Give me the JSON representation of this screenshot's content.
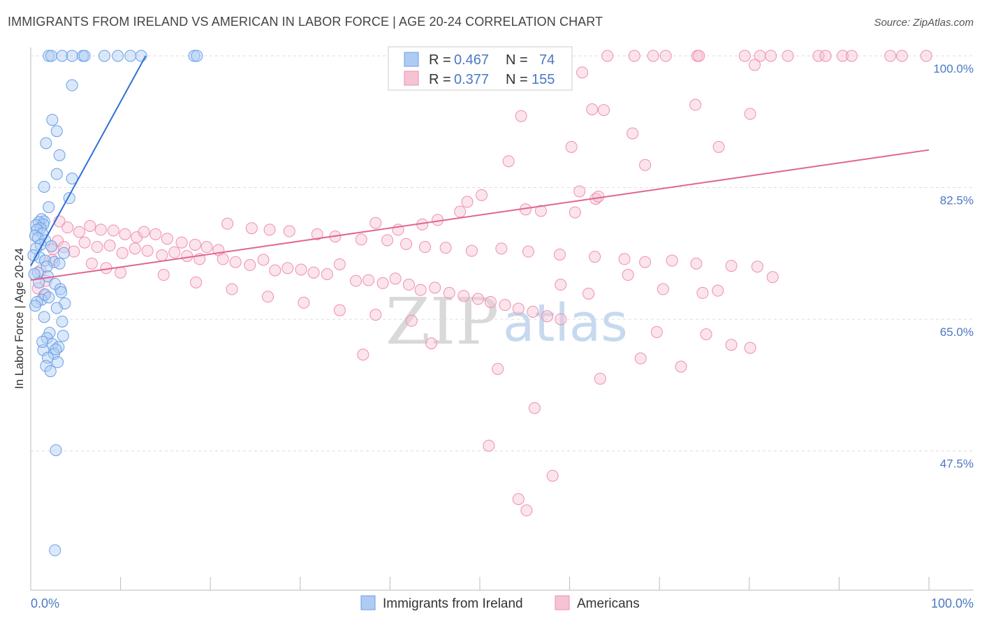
{
  "title": "IMMIGRANTS FROM IRELAND VS AMERICAN IN LABOR FORCE | AGE 20-24 CORRELATION CHART",
  "source": "Source: ZipAtlas.com",
  "watermark": {
    "zip": "ZIP",
    "atlas": "atlas"
  },
  "colors": {
    "ireland": "#6a9fe6",
    "ireland_fill": "#aecbf3",
    "ireland_line": "#2f6fd6",
    "americans": "#ee8fb0",
    "americans_fill": "#f6c3d4",
    "americans_line": "#e0668f",
    "tick_blue": "#4a78c2"
  },
  "stats": [
    {
      "r_label": "R =",
      "r_value": "0.467",
      "n_label": "N =",
      "n_value": "74"
    },
    {
      "r_label": "R =",
      "r_value": "0.377",
      "n_label": "N =",
      "n_value": "155"
    }
  ],
  "chart_data": {
    "type": "scatter",
    "title": "IMMIGRANTS FROM IRELAND VS AMERICAN IN LABOR FORCE | AGE 20-24 CORRELATION CHART",
    "xlabel": "",
    "ylabel": "In Labor Force | Age 20-24",
    "xlim": [
      0,
      100
    ],
    "ylim": [
      29,
      100
    ],
    "x_tick_labels": [
      "0.0%",
      "100.0%"
    ],
    "y_ticks": [
      47.5,
      65.0,
      82.5,
      100.0
    ],
    "y_tick_labels": [
      "47.5%",
      "65.0%",
      "82.5%",
      "100.0%"
    ],
    "grid": "horizontal dashed",
    "legend_position": "bottom-center",
    "series": [
      {
        "name": "Immigrants from Ireland",
        "r": 0.467,
        "n": 74,
        "trend": {
          "x": [
            0.0,
            12.8
          ],
          "y": [
            72.1,
            100.0
          ]
        },
        "points": [
          [
            2.0,
            100
          ],
          [
            2.3,
            100
          ],
          [
            3.5,
            100
          ],
          [
            4.6,
            100
          ],
          [
            5.8,
            100
          ],
          [
            6.0,
            100
          ],
          [
            8.2,
            100
          ],
          [
            9.7,
            100
          ],
          [
            11.1,
            100
          ],
          [
            12.3,
            100
          ],
          [
            18.2,
            100
          ],
          [
            18.5,
            100
          ],
          [
            4.6,
            96.1
          ],
          [
            2.4,
            91.5
          ],
          [
            2.9,
            90.0
          ],
          [
            1.7,
            88.4
          ],
          [
            3.2,
            86.8
          ],
          [
            2.9,
            84.3
          ],
          [
            4.6,
            83.7
          ],
          [
            1.5,
            82.6
          ],
          [
            4.3,
            81.1
          ],
          [
            2.0,
            79.9
          ],
          [
            1.2,
            78.3
          ],
          [
            1.5,
            78.0
          ],
          [
            0.9,
            77.9
          ],
          [
            1.4,
            77.6
          ],
          [
            0.6,
            77.5
          ],
          [
            1.1,
            77.1
          ],
          [
            0.7,
            76.9
          ],
          [
            1.3,
            76.4
          ],
          [
            0.5,
            76.1
          ],
          [
            0.8,
            75.8
          ],
          [
            1.6,
            75.5
          ],
          [
            1.1,
            74.9
          ],
          [
            2.3,
            74.7
          ],
          [
            0.6,
            74.4
          ],
          [
            3.7,
            73.8
          ],
          [
            1.0,
            73.2
          ],
          [
            1.6,
            72.8
          ],
          [
            2.6,
            72.6
          ],
          [
            3.2,
            72.4
          ],
          [
            1.8,
            72.0
          ],
          [
            0.8,
            71.2
          ],
          [
            1.9,
            70.7
          ],
          [
            0.9,
            69.9
          ],
          [
            2.7,
            69.7
          ],
          [
            3.3,
            69.0
          ],
          [
            1.6,
            68.3
          ],
          [
            1.2,
            67.6
          ],
          [
            0.7,
            67.3
          ],
          [
            2.0,
            67.9
          ],
          [
            3.8,
            67.1
          ],
          [
            2.9,
            66.5
          ],
          [
            1.5,
            65.3
          ],
          [
            3.5,
            64.7
          ],
          [
            2.1,
            63.2
          ],
          [
            3.6,
            62.8
          ],
          [
            1.8,
            62.5
          ],
          [
            2.4,
            61.7
          ],
          [
            3.1,
            61.3
          ],
          [
            1.4,
            60.9
          ],
          [
            2.6,
            60.4
          ],
          [
            1.9,
            59.9
          ],
          [
            3.0,
            59.3
          ],
          [
            1.7,
            58.8
          ],
          [
            2.2,
            58.1
          ],
          [
            0.5,
            66.8
          ],
          [
            0.4,
            71.0
          ],
          [
            1.3,
            62.0
          ],
          [
            2.8,
            61.0
          ],
          [
            2.8,
            47.6
          ],
          [
            2.7,
            34.3
          ],
          [
            0.3,
            73.5
          ],
          [
            3.4,
            68.6
          ]
        ]
      },
      {
        "name": "Americans",
        "r": 0.377,
        "n": 155,
        "trend": {
          "x": [
            0.0,
            100.0
          ],
          "y": [
            70.2,
            87.5
          ]
        },
        "points": [
          [
            64.2,
            100
          ],
          [
            67.2,
            100
          ],
          [
            69.3,
            100
          ],
          [
            70.7,
            100
          ],
          [
            74.2,
            100
          ],
          [
            74.4,
            100
          ],
          [
            79.5,
            100
          ],
          [
            81.2,
            100
          ],
          [
            82.4,
            100
          ],
          [
            84.3,
            100
          ],
          [
            87.7,
            100
          ],
          [
            88.5,
            100
          ],
          [
            90.4,
            100
          ],
          [
            91.4,
            100
          ],
          [
            95.7,
            100
          ],
          [
            97.0,
            100
          ],
          [
            99.7,
            100
          ],
          [
            80.6,
            98.8
          ],
          [
            61.4,
            97.8
          ],
          [
            74.0,
            93.5
          ],
          [
            62.5,
            92.9
          ],
          [
            63.8,
            92.8
          ],
          [
            80.1,
            92.3
          ],
          [
            54.6,
            92.0
          ],
          [
            67.0,
            89.7
          ],
          [
            60.2,
            87.9
          ],
          [
            76.6,
            87.9
          ],
          [
            53.2,
            86.0
          ],
          [
            68.4,
            85.5
          ],
          [
            61.1,
            82.0
          ],
          [
            50.2,
            81.5
          ],
          [
            62.9,
            81.0
          ],
          [
            63.2,
            81.3
          ],
          [
            48.6,
            80.6
          ],
          [
            47.8,
            79.3
          ],
          [
            55.1,
            79.6
          ],
          [
            60.6,
            79.2
          ],
          [
            56.8,
            79.4
          ],
          [
            43.6,
            77.6
          ],
          [
            45.3,
            78.2
          ],
          [
            38.4,
            77.8
          ],
          [
            40.9,
            76.9
          ],
          [
            21.9,
            77.7
          ],
          [
            24.6,
            77.1
          ],
          [
            26.6,
            76.9
          ],
          [
            28.8,
            76.7
          ],
          [
            31.9,
            76.3
          ],
          [
            33.9,
            76.0
          ],
          [
            36.8,
            75.6
          ],
          [
            39.7,
            75.5
          ],
          [
            41.8,
            75.0
          ],
          [
            43.9,
            74.6
          ],
          [
            46.2,
            74.5
          ],
          [
            49.1,
            74.1
          ],
          [
            52.4,
            74.4
          ],
          [
            55.4,
            74.0
          ],
          [
            58.9,
            73.6
          ],
          [
            62.8,
            73.3
          ],
          [
            66.1,
            73.0
          ],
          [
            68.4,
            72.6
          ],
          [
            71.4,
            72.8
          ],
          [
            74.1,
            72.4
          ],
          [
            78.0,
            72.1
          ],
          [
            80.9,
            72.0
          ],
          [
            3.2,
            78.0
          ],
          [
            4.1,
            77.2
          ],
          [
            5.4,
            76.6
          ],
          [
            6.6,
            77.4
          ],
          [
            7.8,
            76.9
          ],
          [
            9.2,
            76.8
          ],
          [
            10.5,
            76.3
          ],
          [
            11.8,
            75.9
          ],
          [
            12.6,
            76.6
          ],
          [
            13.9,
            76.3
          ],
          [
            15.2,
            75.7
          ],
          [
            16.8,
            75.2
          ],
          [
            18.3,
            74.9
          ],
          [
            19.6,
            74.6
          ],
          [
            20.9,
            74.2
          ],
          [
            3.0,
            75.4
          ],
          [
            2.5,
            74.3
          ],
          [
            4.8,
            74.0
          ],
          [
            3.7,
            74.6
          ],
          [
            6.0,
            75.2
          ],
          [
            7.4,
            74.6
          ],
          [
            8.8,
            74.8
          ],
          [
            10.2,
            73.8
          ],
          [
            11.6,
            74.4
          ],
          [
            13.0,
            74.1
          ],
          [
            14.6,
            73.5
          ],
          [
            16.0,
            73.9
          ],
          [
            17.4,
            73.4
          ],
          [
            18.8,
            73.0
          ],
          [
            21.4,
            73.0
          ],
          [
            22.8,
            72.6
          ],
          [
            24.4,
            72.2
          ],
          [
            25.9,
            72.9
          ],
          [
            27.2,
            71.5
          ],
          [
            28.6,
            71.8
          ],
          [
            30.1,
            71.6
          ],
          [
            31.5,
            71.2
          ],
          [
            33.0,
            71.0
          ],
          [
            34.4,
            72.3
          ],
          [
            36.2,
            70.1
          ],
          [
            37.6,
            70.2
          ],
          [
            39.2,
            69.8
          ],
          [
            40.6,
            70.4
          ],
          [
            42.1,
            69.6
          ],
          [
            43.4,
            68.9
          ],
          [
            45.0,
            69.2
          ],
          [
            46.6,
            68.5
          ],
          [
            48.2,
            68.1
          ],
          [
            49.8,
            67.7
          ],
          [
            51.2,
            67.3
          ],
          [
            52.8,
            66.9
          ],
          [
            54.3,
            66.4
          ],
          [
            55.9,
            66.0
          ],
          [
            57.5,
            65.4
          ],
          [
            59.0,
            65.0
          ],
          [
            6.8,
            72.4
          ],
          [
            8.4,
            71.8
          ],
          [
            10.0,
            71.2
          ],
          [
            14.8,
            70.9
          ],
          [
            18.4,
            69.9
          ],
          [
            22.4,
            69.0
          ],
          [
            26.4,
            68.0
          ],
          [
            30.4,
            67.2
          ],
          [
            34.4,
            66.2
          ],
          [
            38.4,
            65.6
          ],
          [
            42.4,
            64.8
          ],
          [
            1.1,
            71.5
          ],
          [
            1.7,
            70.1
          ],
          [
            2.4,
            72.9
          ],
          [
            0.8,
            69.1
          ],
          [
            1.5,
            68.2
          ],
          [
            37.0,
            60.3
          ],
          [
            44.6,
            61.8
          ],
          [
            52.0,
            58.4
          ],
          [
            56.1,
            53.2
          ],
          [
            63.4,
            57.1
          ],
          [
            67.9,
            59.8
          ],
          [
            69.7,
            63.3
          ],
          [
            72.4,
            58.7
          ],
          [
            75.2,
            63.0
          ],
          [
            78.0,
            61.6
          ],
          [
            80.1,
            61.2
          ],
          [
            59.0,
            69.6
          ],
          [
            62.1,
            68.4
          ],
          [
            66.5,
            70.9
          ],
          [
            70.4,
            69.0
          ],
          [
            74.8,
            68.5
          ],
          [
            76.5,
            68.8
          ],
          [
            82.6,
            70.6
          ],
          [
            51.0,
            48.2
          ],
          [
            54.3,
            41.1
          ],
          [
            55.2,
            39.6
          ],
          [
            58.1,
            44.2
          ]
        ]
      }
    ]
  }
}
